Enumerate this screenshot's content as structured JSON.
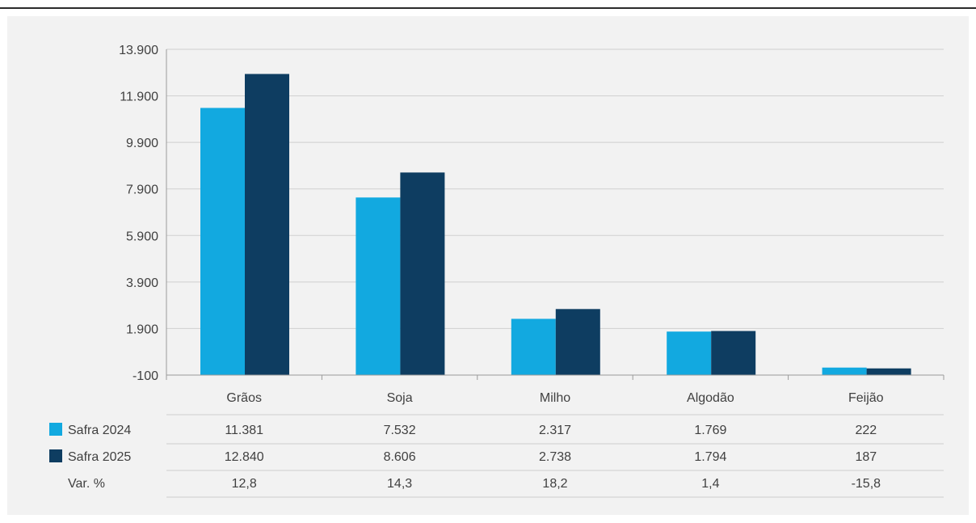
{
  "chart_data": {
    "type": "bar",
    "categories": [
      "Grãos",
      "Soja",
      "Milho",
      "Algodão",
      "Feijão"
    ],
    "series": [
      {
        "name": "Safra 2024",
        "color": "#12a9e0",
        "values": [
          11381,
          7532,
          2317,
          1769,
          222
        ]
      },
      {
        "name": "Safra 2025",
        "color": "#0e3d61",
        "values": [
          12840,
          8606,
          2738,
          1794,
          187
        ]
      }
    ],
    "y_ticks": [
      "13.900",
      "11.900",
      "9.900",
      "7.900",
      "5.900",
      "3.900",
      "1.900",
      "-100"
    ],
    "ylim": [
      -100,
      13900
    ],
    "grid": true,
    "legend": "table-below",
    "table": {
      "rows": [
        {
          "label": "Safra 2024",
          "cells": [
            "11.381",
            "7.532",
            "2.317",
            "1.769",
            "222"
          ]
        },
        {
          "label": "Safra 2025",
          "cells": [
            "12.840",
            "8.606",
            "2.738",
            "1.794",
            "187"
          ]
        },
        {
          "label": "Var. %",
          "cells": [
            "12,8",
            "14,3",
            "18,2",
            "1,4",
            "-15,8"
          ]
        }
      ]
    }
  }
}
